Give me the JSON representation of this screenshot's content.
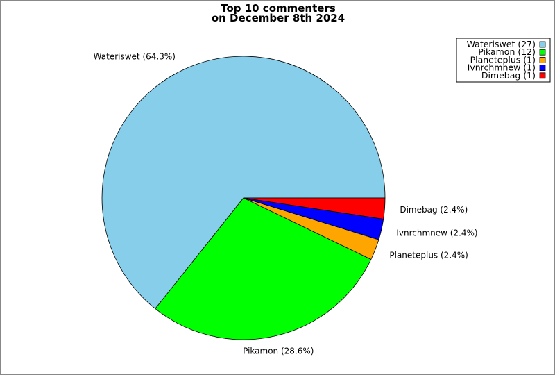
{
  "chart_data": {
    "type": "pie",
    "title": "Top 10 commenters",
    "subtitle": "on December 8th 2024",
    "legend_position": "top-right",
    "slices": [
      {
        "name": "Wateriswet",
        "value": 27,
        "percent_label": "Wateriswet (64.3%)",
        "legend_label": "Wateriswet (27)",
        "color": "#87CEEB"
      },
      {
        "name": "Pikamon",
        "value": 12,
        "percent_label": "Pikamon (28.6%)",
        "legend_label": "Pikamon (12)",
        "color": "#00FF00"
      },
      {
        "name": "Planeteplus",
        "value": 1,
        "percent_label": "Planeteplus (2.4%)",
        "legend_label": "Planeteplus (1)",
        "color": "#FFA500"
      },
      {
        "name": "Ivnrchmnew",
        "value": 1,
        "percent_label": "Ivnrchmnew (2.4%)",
        "legend_label": "Ivnrchmnew (1)",
        "color": "#0000FF"
      },
      {
        "name": "Dimebag",
        "value": 1,
        "percent_label": "Dimebag (2.4%)",
        "legend_label": "Dimebag (1)",
        "color": "#FF0000"
      }
    ]
  }
}
